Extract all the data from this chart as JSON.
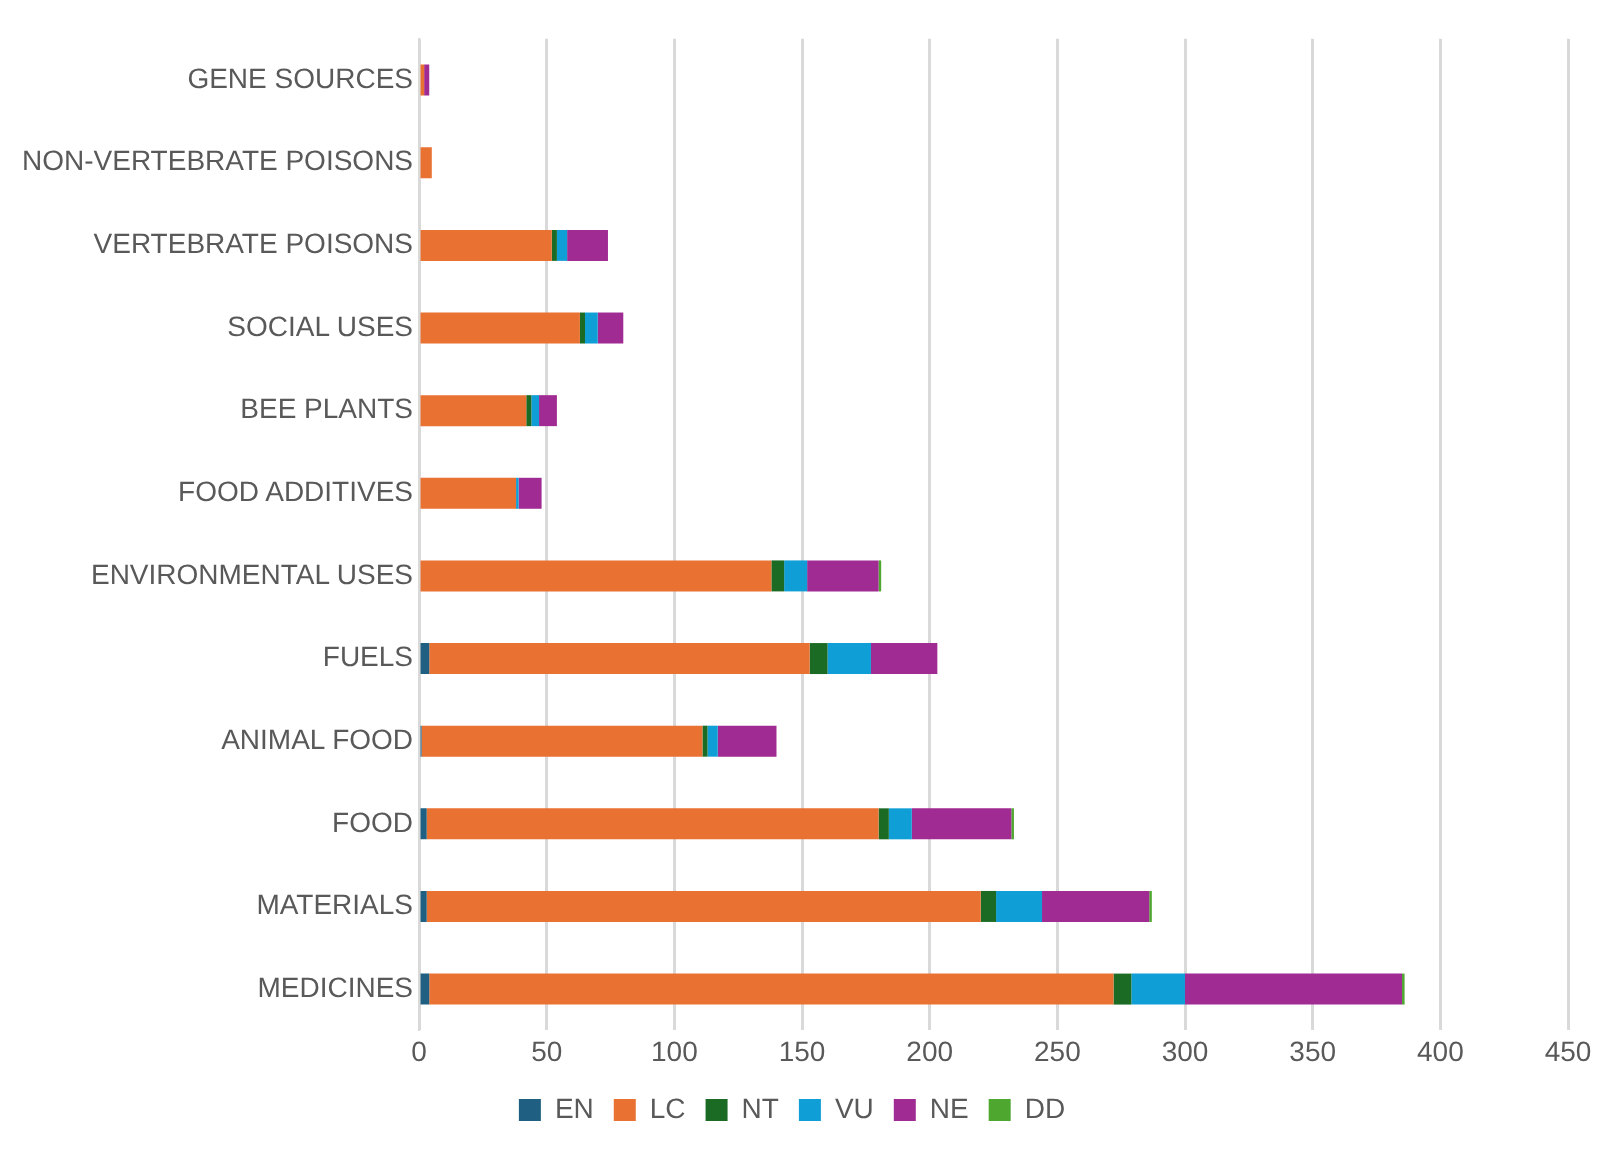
{
  "chart_data": {
    "type": "bar",
    "orientation": "horizontal",
    "stacked": true,
    "categories": [
      "GENE SOURCES",
      "NON-VERTEBRATE POISONS",
      "VERTEBRATE POISONS",
      "SOCIAL USES",
      "BEE PLANTS",
      "FOOD ADDITIVES",
      "ENVIRONMENTAL USES",
      "FUELS",
      "ANIMAL FOOD",
      "FOOD",
      "MATERIALS",
      "MEDICINES"
    ],
    "series": [
      {
        "name": "EN",
        "color": "#1f5f82",
        "values": [
          0,
          0,
          0,
          0,
          0,
          0,
          0,
          4,
          1,
          3,
          3,
          4
        ]
      },
      {
        "name": "LC",
        "color": "#e97132",
        "values": [
          2,
          5,
          52,
          63,
          42,
          38,
          138,
          149,
          110,
          177,
          217,
          268
        ]
      },
      {
        "name": "NT",
        "color": "#1b6b25",
        "values": [
          0,
          0,
          2,
          2,
          2,
          0,
          5,
          7,
          2,
          4,
          6,
          7
        ]
      },
      {
        "name": "VU",
        "color": "#0f9ed5",
        "values": [
          0,
          0,
          4,
          5,
          3,
          1,
          9,
          17,
          4,
          9,
          18,
          21
        ]
      },
      {
        "name": "NE",
        "color": "#a02b93",
        "values": [
          2,
          0,
          16,
          10,
          7,
          9,
          28,
          26,
          23,
          39,
          42,
          85
        ]
      },
      {
        "name": "DD",
        "color": "#4ea72e",
        "values": [
          0,
          0,
          0,
          0,
          0,
          0,
          1,
          0,
          0,
          1,
          1,
          1
        ]
      }
    ],
    "xlim": [
      0,
      450
    ],
    "xticks": [
      0,
      50,
      100,
      150,
      200,
      250,
      300,
      350,
      400,
      450
    ],
    "grid": "x",
    "legend": "bottom"
  }
}
